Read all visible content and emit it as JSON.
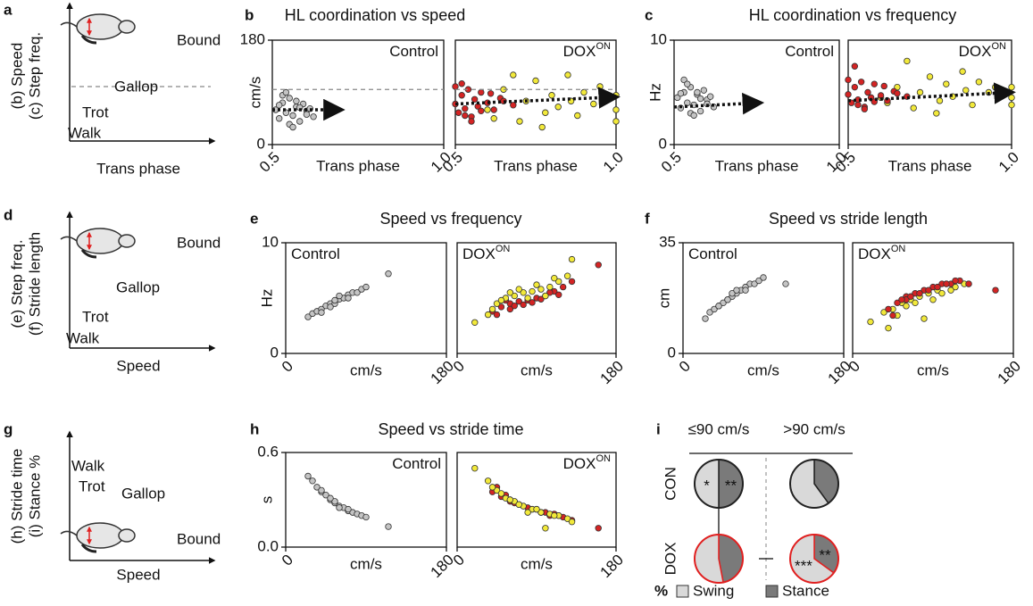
{
  "schematics": [
    {
      "letter": "a",
      "ylabels": [
        "(b) Speed",
        "(c) Step freq."
      ],
      "xlabel": "Trans phase",
      "regimes": [
        "Bound",
        "Gallop",
        "Trot",
        "Walk"
      ]
    },
    {
      "letter": "d",
      "ylabels": [
        "(e) Step freq.",
        "(f) Stride length"
      ],
      "xlabel": "Speed",
      "regimes": [
        "Bound",
        "Gallop",
        "Trot",
        "Walk"
      ]
    },
    {
      "letter": "g",
      "ylabels": [
        "(h) Stride time",
        "(i) Stance %"
      ],
      "xlabel": "Speed",
      "regimes": [
        "Walk",
        "Trot",
        "Gallop",
        "Bound"
      ]
    }
  ],
  "chart_data": [
    {
      "type": "scatter",
      "panel": "b",
      "title": "HL coordination vs speed",
      "ylabel": "cm/s",
      "xlabel": "Trans phase",
      "xlim": [
        0.5,
        1
      ],
      "xticks": [
        0.5,
        {
          "value": 1,
          "label": "1.0"
        }
      ],
      "ylim": [
        0,
        180
      ],
      "yticks": [
        0,
        180
      ],
      "threshold": 95,
      "subplots": [
        {
          "label": "Control",
          "trend": {
            "x": [
              0.5,
              0.7
            ],
            "y": [
              60,
              60
            ]
          },
          "series": [
            {
              "color": "#c4c4c4",
              "x": [
                0.51,
                0.52,
                0.53,
                0.54,
                0.55,
                0.56,
                0.57,
                0.58,
                0.59,
                0.6,
                0.61,
                0.62,
                0.53,
                0.55,
                0.57,
                0.52,
                0.6,
                0.54,
                0.56,
                0.58
              ],
              "values": [
                60,
                45,
                72,
                55,
                80,
                50,
                65,
                40,
                70,
                58,
                62,
                48,
                85,
                35,
                75,
                68,
                52,
                90,
                30,
                64
              ]
            }
          ]
        },
        {
          "label": "DOX",
          "label_sup": "ON",
          "trend": {
            "x": [
              0.5,
              1
            ],
            "y": [
              70,
              82
            ]
          },
          "series": [
            {
              "color": "#f2e93a",
              "x": [
                0.6,
                0.65,
                0.7,
                0.72,
                0.75,
                0.78,
                0.8,
                0.82,
                0.85,
                0.88,
                0.9,
                0.93,
                0.95,
                1,
                1,
                1,
                0.68,
                0.77,
                0.86,
                0.62
              ],
              "values": [
                60,
                95,
                40,
                75,
                110,
                55,
                85,
                65,
                120,
                50,
                90,
                70,
                100,
                60,
                85,
                40,
                120,
                30,
                75,
                45
              ]
            },
            {
              "color": "#d42424",
              "x": [
                0.5,
                0.51,
                0.52,
                0.53,
                0.54,
                0.55,
                0.56,
                0.57,
                0.58,
                0.6,
                0.62,
                0.64,
                0.52,
                0.55,
                0.58,
                0.61,
                0.65,
                0.68,
                0.5,
                0.53
              ],
              "values": [
                70,
                55,
                85,
                62,
                95,
                48,
                78,
                66,
                90,
                72,
                60,
                80,
                105,
                40,
                58,
                88,
                75,
                68,
                100,
                50
              ]
            }
          ]
        }
      ]
    },
    {
      "type": "scatter",
      "panel": "c",
      "title": "HL coordination vs frequency",
      "ylabel": "Hz",
      "xlabel": "Trans phase",
      "xlim": [
        0.5,
        1
      ],
      "xticks": [
        0.5,
        {
          "value": 1,
          "label": "1.0"
        }
      ],
      "ylim": [
        0,
        10
      ],
      "yticks": [
        0,
        10
      ],
      "subplots": [
        {
          "label": "Control",
          "trend": {
            "x": [
              0.5,
              0.76
            ],
            "y": [
              3.6,
              4.0
            ]
          },
          "series": [
            {
              "color": "#c4c4c4",
              "x": [
                0.51,
                0.52,
                0.53,
                0.54,
                0.55,
                0.56,
                0.57,
                0.58,
                0.59,
                0.6,
                0.61,
                0.62,
                0.53,
                0.55,
                0.57,
                0.52,
                0.6,
                0.54,
                0.56,
                0.58
              ],
              "values": [
                4.5,
                3.5,
                5.0,
                4.0,
                5.5,
                3.8,
                4.8,
                3.2,
                5.2,
                4.3,
                4.6,
                3.6,
                6.2,
                3.0,
                5.0,
                4.9,
                3.9,
                5.8,
                2.8,
                4.4
              ]
            }
          ]
        },
        {
          "label": "DOX",
          "label_sup": "ON",
          "trend": {
            "x": [
              0.5,
              1
            ],
            "y": [
              4.2,
              5.0
            ]
          },
          "series": [
            {
              "color": "#f2e93a",
              "x": [
                0.6,
                0.65,
                0.7,
                0.72,
                0.75,
                0.78,
                0.8,
                0.82,
                0.85,
                0.88,
                0.9,
                0.93,
                0.95,
                1,
                1,
                1,
                0.68,
                0.77,
                0.86,
                0.62
              ],
              "values": [
                4.5,
                5.5,
                3.5,
                5.0,
                6.5,
                4.2,
                5.8,
                4.6,
                7.0,
                3.8,
                6.0,
                5.0,
                5.5,
                4.5,
                5.5,
                3.8,
                8.0,
                3.0,
                5.2,
                4.0
              ]
            },
            {
              "color": "#d42424",
              "x": [
                0.5,
                0.51,
                0.52,
                0.53,
                0.54,
                0.55,
                0.56,
                0.57,
                0.58,
                0.6,
                0.62,
                0.64,
                0.52,
                0.55,
                0.58,
                0.61,
                0.65,
                0.68,
                0.5,
                0.53
              ],
              "values": [
                4.8,
                4.0,
                5.5,
                4.3,
                6.0,
                3.6,
                5.0,
                4.5,
                5.8,
                4.7,
                4.2,
                5.1,
                7.5,
                3.4,
                4.1,
                5.6,
                4.9,
                4.6,
                6.2,
                3.8
              ]
            }
          ]
        }
      ]
    },
    {
      "type": "scatter",
      "panel": "e",
      "title": "Speed vs frequency",
      "ylabel": "Hz",
      "xlabel": "cm/s",
      "xlim": [
        0,
        180
      ],
      "xticks": [
        0,
        180
      ],
      "ylim": [
        0,
        10
      ],
      "yticks": [
        0,
        10
      ],
      "subplots": [
        {
          "label": "Control",
          "series": [
            {
              "color": "#c4c4c4",
              "x": [
                25,
                30,
                35,
                40,
                45,
                50,
                55,
                60,
                65,
                70,
                75,
                80,
                85,
                90,
                40,
                55,
                70,
                60,
                50,
                115
              ],
              "values": [
                3.3,
                3.6,
                3.8,
                4.0,
                4.3,
                4.5,
                4.5,
                4.9,
                5.0,
                5.3,
                5.5,
                5.5,
                5.8,
                6.0,
                3.7,
                4.8,
                5.0,
                5.2,
                4.2,
                7.2
              ]
            }
          ]
        },
        {
          "label": "DOX",
          "label_sup": "ON",
          "series": [
            {
              "color": "#d42424",
              "x": [
                40,
                50,
                60,
                70,
                80,
                90,
                100,
                110,
                60,
                75,
                85,
                95,
                105,
                120,
                45,
                65,
                130,
                160,
                55,
                115
              ],
              "values": [
                3.8,
                4.2,
                4.5,
                4.7,
                4.8,
                5.0,
                5.2,
                5.6,
                4.0,
                4.4,
                4.6,
                4.9,
                5.5,
                6.0,
                3.5,
                4.3,
                6.5,
                8.0,
                4.8,
                5.3
              ]
            },
            {
              "color": "#f2e93a",
              "x": [
                20,
                35,
                45,
                55,
                65,
                75,
                85,
                95,
                105,
                115,
                125,
                50,
                70,
                90,
                110,
                130,
                80,
                60,
                100,
                40
              ],
              "values": [
                2.8,
                3.5,
                4.5,
                5.0,
                5.2,
                5.5,
                5.6,
                5.8,
                6.0,
                6.5,
                7.0,
                4.8,
                5.8,
                6.2,
                6.8,
                8.5,
                5.0,
                5.5,
                5.2,
                4.0
              ]
            }
          ]
        }
      ]
    },
    {
      "type": "scatter",
      "panel": "f",
      "title": "Speed vs stride length",
      "ylabel": "cm",
      "xlabel": "cm/s",
      "xlim": [
        0,
        180
      ],
      "xticks": [
        0,
        180
      ],
      "ylim": [
        0,
        35
      ],
      "yticks": [
        0,
        35
      ],
      "subplots": [
        {
          "label": "Control",
          "series": [
            {
              "color": "#c4c4c4",
              "x": [
                25,
                30,
                35,
                40,
                45,
                50,
                55,
                60,
                65,
                70,
                75,
                80,
                85,
                90,
                40,
                55,
                70,
                60,
                50,
                115
              ],
              "values": [
                11,
                13,
                14,
                15,
                16,
                17,
                18,
                19,
                20,
                21,
                22,
                22,
                23,
                24,
                15,
                19,
                20,
                20,
                17,
                22
              ]
            }
          ]
        },
        {
          "label": "DOX",
          "label_sup": "ON",
          "series": [
            {
              "color": "#f2e93a",
              "x": [
                20,
                35,
                45,
                55,
                65,
                75,
                85,
                95,
                105,
                115,
                125,
                50,
                70,
                90,
                110,
                130,
                80,
                60,
                100,
                40
              ],
              "values": [
                10,
                13,
                14,
                16,
                17,
                18,
                19,
                20,
                22,
                21,
                22,
                12,
                16,
                17,
                20,
                22,
                11,
                15,
                19,
                8
              ]
            },
            {
              "color": "#d42424",
              "x": [
                40,
                50,
                60,
                70,
                80,
                90,
                100,
                110,
                60,
                75,
                85,
                95,
                105,
                120,
                45,
                65,
                130,
                160,
                55,
                115
              ],
              "values": [
                14,
                16,
                18,
                19,
                20,
                21,
                22,
                22,
                17,
                19,
                20,
                21,
                22,
                23,
                12,
                18,
                22,
                20,
                17,
                23
              ]
            }
          ]
        }
      ]
    },
    {
      "type": "scatter",
      "panel": "h",
      "title": "Speed vs stride time",
      "ylabel": "s",
      "xlabel": "cm/s",
      "xlim": [
        0,
        180
      ],
      "xticks": [
        0,
        180
      ],
      "ylim": [
        0,
        0.6
      ],
      "yticks": [
        {
          "value": 0,
          "label": "0.0"
        },
        0.6
      ],
      "subplots": [
        {
          "label": "Control",
          "series": [
            {
              "color": "#c4c4c4",
              "x": [
                25,
                30,
                35,
                40,
                45,
                50,
                55,
                60,
                65,
                70,
                75,
                80,
                85,
                90,
                40,
                55,
                70,
                60,
                50,
                115
              ],
              "values": [
                0.45,
                0.42,
                0.38,
                0.35,
                0.33,
                0.3,
                0.28,
                0.26,
                0.25,
                0.23,
                0.22,
                0.21,
                0.2,
                0.19,
                0.36,
                0.29,
                0.24,
                0.25,
                0.31,
                0.13
              ]
            }
          ]
        },
        {
          "label": "DOX",
          "label_sup": "ON",
          "series": [
            {
              "color": "#d42424",
              "x": [
                40,
                50,
                60,
                70,
                80,
                90,
                100,
                110,
                60,
                75,
                85,
                95,
                105,
                120,
                45,
                65,
                130,
                160,
                55,
                115
              ],
              "values": [
                0.35,
                0.32,
                0.29,
                0.27,
                0.25,
                0.24,
                0.22,
                0.21,
                0.3,
                0.26,
                0.24,
                0.22,
                0.2,
                0.19,
                0.38,
                0.28,
                0.17,
                0.12,
                0.33,
                0.2
              ]
            },
            {
              "color": "#f2e93a",
              "x": [
                20,
                35,
                45,
                55,
                65,
                75,
                85,
                95,
                105,
                115,
                125,
                50,
                70,
                90,
                110,
                130,
                80,
                60,
                100,
                40
              ],
              "values": [
                0.5,
                0.42,
                0.36,
                0.31,
                0.29,
                0.26,
                0.24,
                0.22,
                0.21,
                0.2,
                0.18,
                0.34,
                0.27,
                0.24,
                0.2,
                0.16,
                0.22,
                0.3,
                0.12,
                0.38
              ]
            }
          ]
        }
      ]
    },
    {
      "type": "pie",
      "panel": "i",
      "column_labels": [
        "≤90 cm/s",
        ">90 cm/s"
      ],
      "row_labels": [
        "CON",
        "DOX"
      ],
      "categories": [
        "Swing",
        "Stance"
      ],
      "legend_title": "%",
      "colors": [
        "#d9d9d9",
        "#7a7a7a"
      ],
      "row_outline": [
        "#222222",
        "#e02020"
      ],
      "pies": [
        {
          "values": [
            50,
            50
          ],
          "swing_mark": "*",
          "stance_mark": "**"
        },
        {
          "values": [
            60,
            40
          ]
        },
        {
          "values": [
            53,
            47
          ]
        },
        {
          "values": [
            65,
            35
          ],
          "swing_mark": "***",
          "stance_mark": "**"
        }
      ]
    }
  ]
}
